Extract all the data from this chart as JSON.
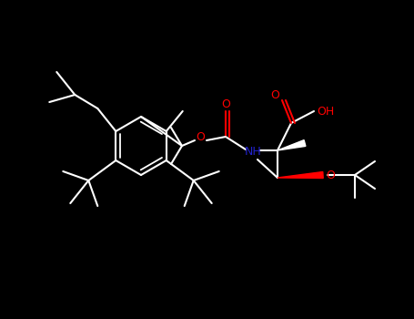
{
  "background_color": "#000000",
  "bond_color": "#ffffff",
  "O_color": "#ff0000",
  "N_color": "#2222cc",
  "figsize": [
    4.55,
    3.5
  ],
  "dpi": 100,
  "xlim": [
    0,
    455
  ],
  "ylim": [
    0,
    350
  ]
}
